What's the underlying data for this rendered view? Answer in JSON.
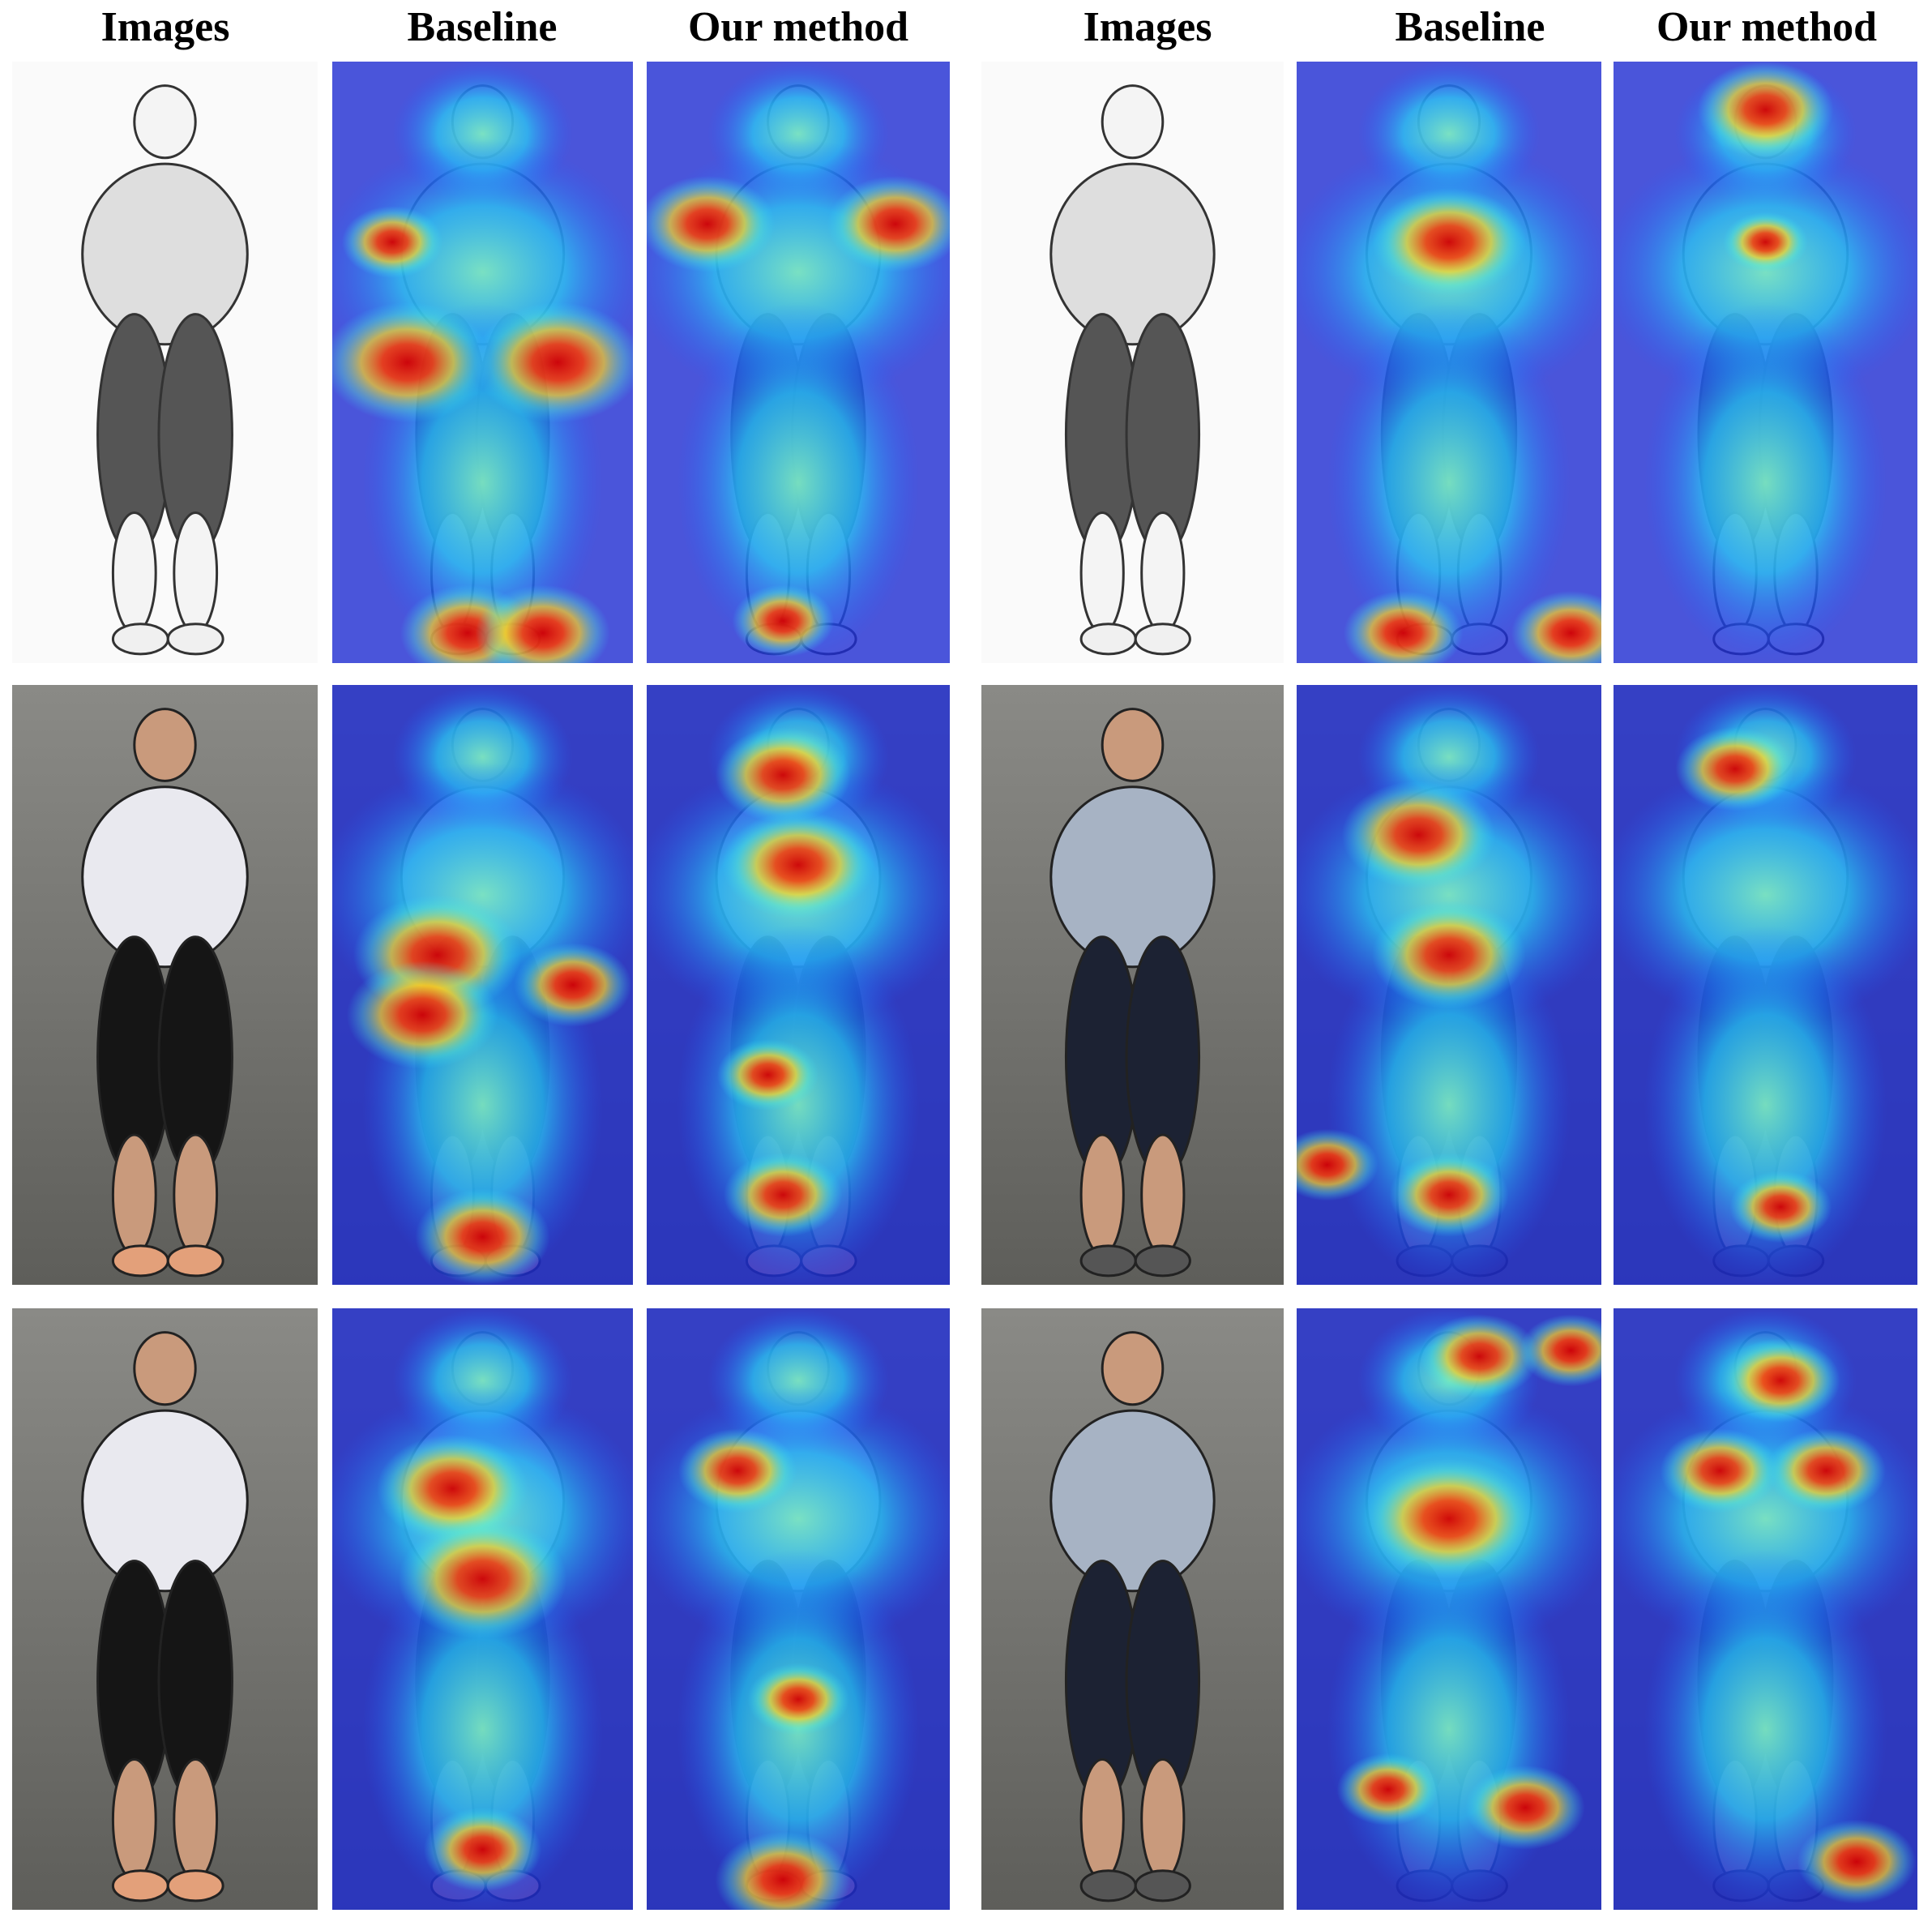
{
  "headers": [
    "Images",
    "Baseline",
    "Our method",
    "Images",
    "Baseline",
    "Our method"
  ]
}
